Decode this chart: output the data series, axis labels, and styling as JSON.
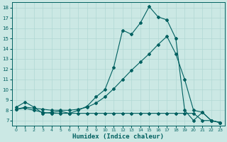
{
  "xlabel": "Humidex (Indice chaleur)",
  "background_color": "#cbe8e4",
  "grid_color": "#b0d8d4",
  "line_color": "#006060",
  "xlim": [
    -0.5,
    23.5
  ],
  "ylim": [
    6.5,
    18.5
  ],
  "xticks": [
    0,
    1,
    2,
    3,
    4,
    5,
    6,
    7,
    8,
    9,
    10,
    11,
    12,
    13,
    14,
    15,
    16,
    17,
    18,
    19,
    20,
    21,
    22,
    23
  ],
  "yticks": [
    7,
    8,
    9,
    10,
    11,
    12,
    13,
    14,
    15,
    16,
    17,
    18
  ],
  "line1_x": [
    0,
    1,
    2,
    3,
    4,
    5,
    6,
    7,
    8,
    9,
    10,
    11,
    12,
    13,
    14,
    15,
    16,
    17,
    18,
    19,
    20,
    21,
    22,
    23
  ],
  "line1_y": [
    8.3,
    8.8,
    8.3,
    7.7,
    7.8,
    7.9,
    7.7,
    8.0,
    8.4,
    9.3,
    10.0,
    12.2,
    15.8,
    15.4,
    16.5,
    18.1,
    17.1,
    16.8,
    15.0,
    8.0,
    7.0,
    7.8,
    7.0,
    6.8
  ],
  "line2_x": [
    0,
    1,
    2,
    3,
    4,
    5,
    6,
    7,
    8,
    9,
    10,
    11,
    12,
    13,
    14,
    15,
    16,
    17,
    18,
    19,
    20,
    21,
    22,
    23
  ],
  "line2_y": [
    8.1,
    8.3,
    8.2,
    8.1,
    8.0,
    8.0,
    8.0,
    8.1,
    8.3,
    8.7,
    9.3,
    10.1,
    11.0,
    11.9,
    12.7,
    13.5,
    14.4,
    15.2,
    13.5,
    11.0,
    8.0,
    7.8,
    7.0,
    6.8
  ],
  "line3_x": [
    0,
    1,
    2,
    3,
    4,
    5,
    6,
    7,
    8,
    9,
    10,
    11,
    12,
    13,
    14,
    15,
    16,
    17,
    18,
    19,
    20,
    21,
    22,
    23
  ],
  "line3_y": [
    8.1,
    8.2,
    8.0,
    7.8,
    7.7,
    7.7,
    7.7,
    7.7,
    7.7,
    7.7,
    7.7,
    7.7,
    7.7,
    7.7,
    7.7,
    7.7,
    7.7,
    7.7,
    7.7,
    7.7,
    7.7,
    7.0,
    7.0,
    6.8
  ]
}
